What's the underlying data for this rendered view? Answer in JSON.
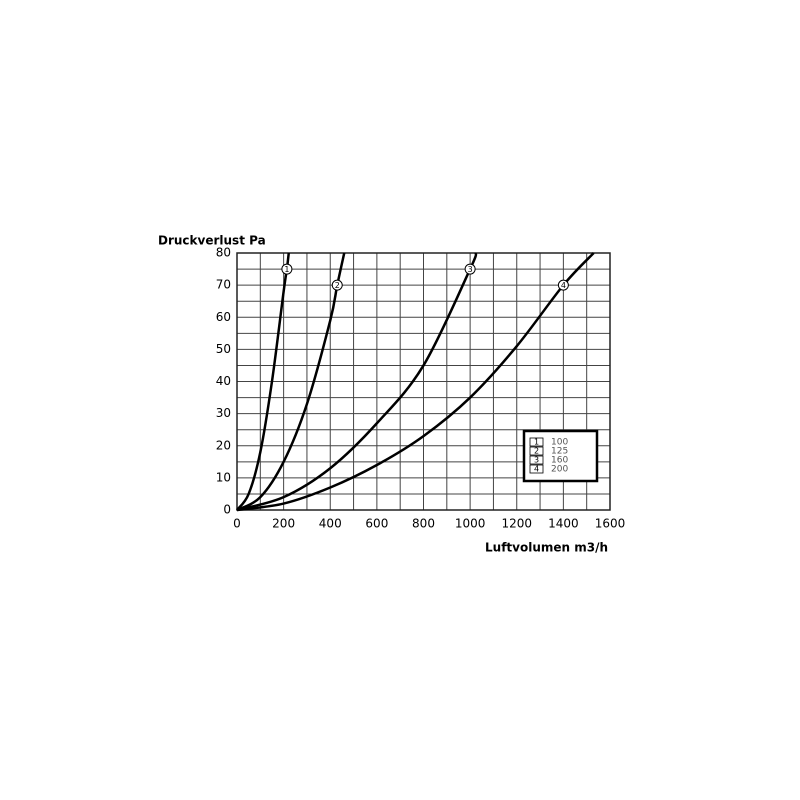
{
  "chart_data": {
    "type": "line",
    "ylabel": "Druckverlust Pa",
    "xlabel": "Luftvolumen m3/h",
    "xlim": [
      0,
      1600
    ],
    "xticks": [
      0,
      200,
      400,
      600,
      800,
      1000,
      1200,
      1400,
      1600
    ],
    "ylim": [
      0,
      80
    ],
    "yticks": [
      0,
      10,
      20,
      30,
      40,
      50,
      60,
      70,
      80
    ],
    "grid": true,
    "grid_subdivisions": 2,
    "legend": "lower right",
    "series": [
      {
        "name": "100",
        "label": "1",
        "color": "#000000",
        "x": [
          0,
          50,
          100,
          150,
          200,
          214,
          222
        ],
        "values": [
          0,
          5,
          18,
          40,
          68,
          75,
          80
        ]
      },
      {
        "name": "125",
        "label": "2",
        "color": "#000000",
        "x": [
          0,
          100,
          200,
          300,
          400,
          430,
          460
        ],
        "values": [
          0,
          4,
          15,
          33,
          59,
          70,
          80
        ]
      },
      {
        "name": "160",
        "label": "3",
        "color": "#000000",
        "x": [
          0,
          200,
          400,
          600,
          800,
          1000,
          1025
        ],
        "values": [
          0,
          4,
          13,
          27,
          45,
          75,
          80
        ]
      },
      {
        "name": "200",
        "label": "4",
        "color": "#000000",
        "x": [
          0,
          200,
          400,
          600,
          800,
          1000,
          1200,
          1400,
          1530
        ],
        "values": [
          0,
          2,
          7,
          14,
          23,
          35,
          51,
          70,
          80
        ]
      }
    ]
  }
}
